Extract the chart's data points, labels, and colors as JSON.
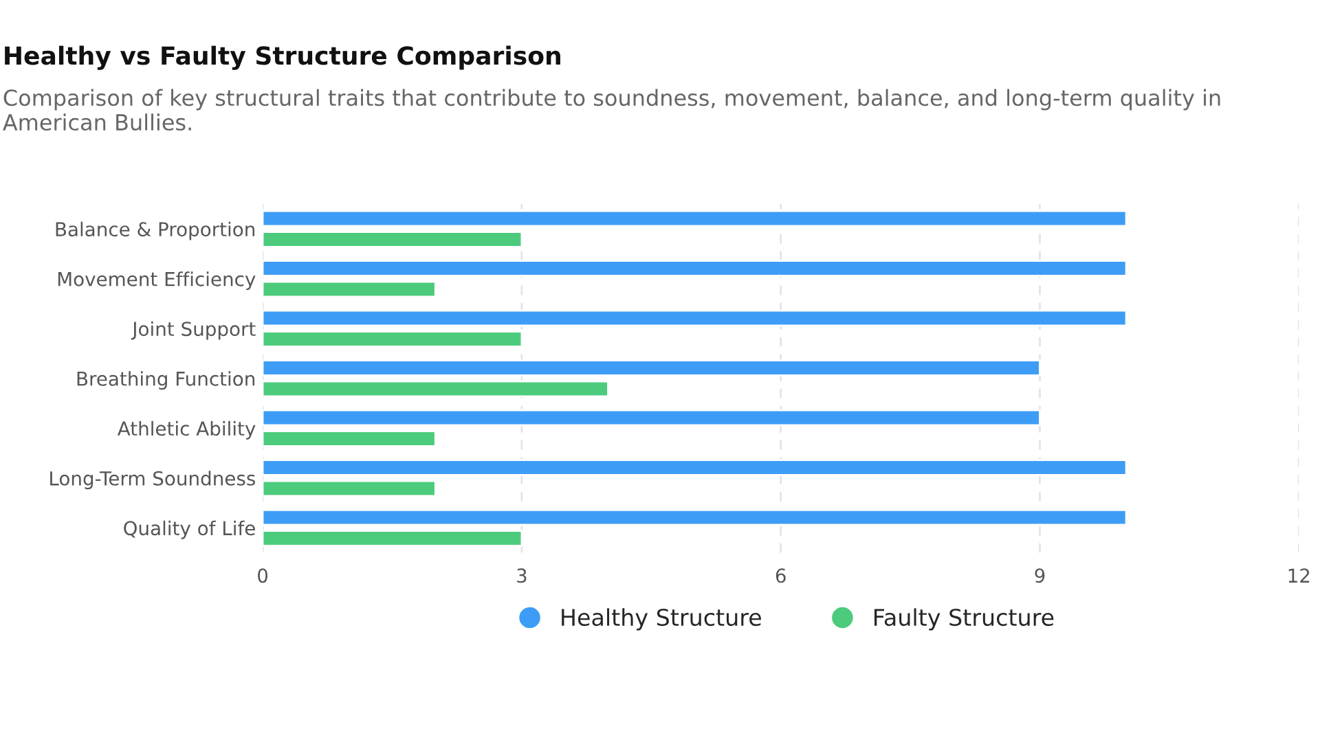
{
  "chart_data": {
    "type": "bar",
    "orientation": "horizontal",
    "title": "Healthy vs Faulty Structure Comparison",
    "subtitle": "Comparison of key structural traits that contribute to soundness, movement, balance, and long-term quality in American Bullies.",
    "categories": [
      "Balance & Proportion",
      "Movement Efficiency",
      "Joint Support",
      "Breathing Function",
      "Athletic Ability",
      "Long-Term Soundness",
      "Quality of Life"
    ],
    "series": [
      {
        "name": "Healthy Structure",
        "color": "#3d9df6",
        "values": [
          10,
          10,
          10,
          9,
          9,
          10,
          10
        ]
      },
      {
        "name": "Faulty Structure",
        "color": "#4ccb7c",
        "values": [
          3,
          2,
          3,
          4,
          2,
          2,
          3
        ]
      }
    ],
    "xlim": [
      0,
      12
    ],
    "xticks": [
      0,
      3,
      6,
      9,
      12
    ],
    "grid": "x",
    "legend": "bottom"
  }
}
